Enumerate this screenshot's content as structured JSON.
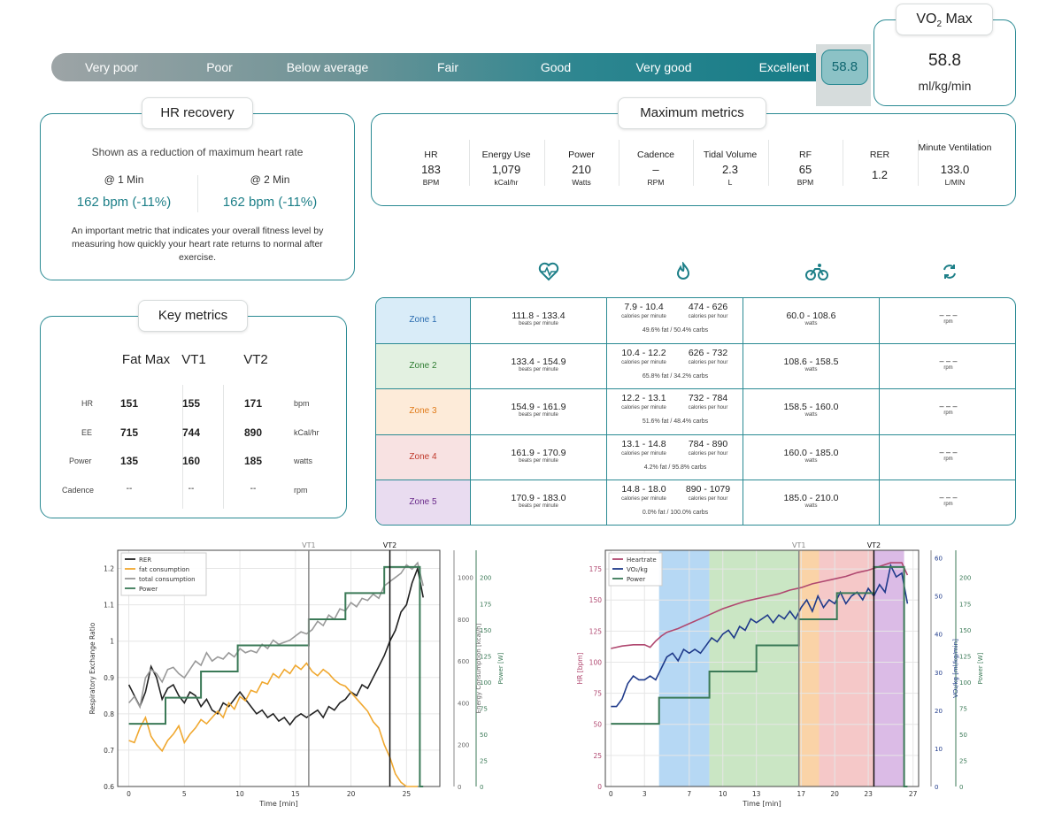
{
  "scale": {
    "labels": [
      "Very poor",
      "Poor",
      "Below average",
      "Fair",
      "Good",
      "Very good",
      "Excellent"
    ],
    "current_value": "58.8",
    "current_fraction": 0.975
  },
  "vo2max": {
    "title_main": "VO",
    "title_sub": "2",
    "title_rest": " Max",
    "value": "58.8",
    "unit": "ml/kg/min"
  },
  "hr_recovery": {
    "title": "HR recovery",
    "description": "Shown as a reduction of maximum heart rate",
    "at1_label": "@ 1 Min",
    "at1_value": "162 bpm (-11%)",
    "at2_label": "@ 2 Min",
    "at2_value": "162 bpm (-11%)",
    "footnote": "An important metric that indicates your overall fitness level by measuring how quickly your heart rate returns to normal after exercise."
  },
  "max_metrics": {
    "title": "Maximum metrics",
    "items": [
      {
        "label": "HR",
        "value": "183",
        "unit": "BPM"
      },
      {
        "label": "Energy Use",
        "value": "1,079",
        "unit": "kCal/hr"
      },
      {
        "label": "Power",
        "value": "210",
        "unit": "Watts"
      },
      {
        "label": "Cadence",
        "value": "–",
        "unit": "RPM"
      },
      {
        "label": "Tidal Volume",
        "value": "2.3",
        "unit": "L"
      },
      {
        "label": "RF",
        "value": "65",
        "unit": "BPM"
      },
      {
        "label": "RER",
        "value": "1.2",
        "unit": ""
      },
      {
        "label": "Minute Ventilation",
        "value": "133.0",
        "unit": "L/MIN"
      }
    ]
  },
  "key_metrics": {
    "title": "Key metrics",
    "columns": [
      "Fat Max",
      "VT1",
      "VT2"
    ],
    "rows": [
      {
        "label": "HR",
        "values": [
          "151",
          "155",
          "171"
        ],
        "unit": "bpm"
      },
      {
        "label": "EE",
        "values": [
          "715",
          "744",
          "890"
        ],
        "unit": "kCal/hr"
      },
      {
        "label": "Power",
        "values": [
          "135",
          "160",
          "185"
        ],
        "unit": "watts"
      },
      {
        "label": "Cadence",
        "values": [
          "--",
          "--",
          "--"
        ],
        "unit": "rpm"
      }
    ]
  },
  "zones": {
    "header_icons": [
      "heart-rate-icon",
      "flame-icon",
      "cycling-icon",
      "cadence-icon"
    ],
    "rows": [
      {
        "name": "Zone 1",
        "color": "#d9ecf8",
        "text_color": "#2b6cb0",
        "hr": "111.8 - 133.4",
        "hr_unit": "beats per minute",
        "cal_min": "7.9 - 10.4",
        "cal_hr": "474 - 626",
        "cal_min_unit": "calories per minute",
        "cal_hr_unit": "calories per hour",
        "ratio": "49.6% fat / 50.4% carbs",
        "power": "60.0 - 108.6",
        "power_unit": "watts",
        "cad": "– – –",
        "cad_unit": "rpm"
      },
      {
        "name": "Zone 2",
        "color": "#e3f1e1",
        "text_color": "#2f7d32",
        "hr": "133.4 - 154.9",
        "hr_unit": "beats per minute",
        "cal_min": "10.4 - 12.2",
        "cal_hr": "626 - 732",
        "cal_min_unit": "calories per minute",
        "cal_hr_unit": "calories per hour",
        "ratio": "65.8% fat / 34.2% carbs",
        "power": "108.6 - 158.5",
        "power_unit": "watts",
        "cad": "– – –",
        "cad_unit": "rpm"
      },
      {
        "name": "Zone 3",
        "color": "#fdebd9",
        "text_color": "#e07b1a",
        "hr": "154.9 - 161.9",
        "hr_unit": "beats per minute",
        "cal_min": "12.2 - 13.1",
        "cal_hr": "732 - 784",
        "cal_min_unit": "calories per minute",
        "cal_hr_unit": "calories per hour",
        "ratio": "51.6% fat / 48.4% carbs",
        "power": "158.5 - 160.0",
        "power_unit": "watts",
        "cad": "– – –",
        "cad_unit": "rpm"
      },
      {
        "name": "Zone 4",
        "color": "#f8e2e2",
        "text_color": "#c0392b",
        "hr": "161.9 - 170.9",
        "hr_unit": "beats per minute",
        "cal_min": "13.1 - 14.8",
        "cal_hr": "784 - 890",
        "cal_min_unit": "calories per minute",
        "cal_hr_unit": "calories per hour",
        "ratio": "4.2% fat / 95.8% carbs",
        "power": "160.0 - 185.0",
        "power_unit": "watts",
        "cad": "– – –",
        "cad_unit": "rpm"
      },
      {
        "name": "Zone 5",
        "color": "#e9dcf0",
        "text_color": "#6a2a8a",
        "hr": "170.9 - 183.0",
        "hr_unit": "beats per minute",
        "cal_min": "14.8 - 18.0",
        "cal_hr": "890 - 1079",
        "cal_min_unit": "calories per minute",
        "cal_hr_unit": "calories per hour",
        "ratio": "0.0% fat / 100.0% carbs",
        "power": "185.0 - 210.0",
        "power_unit": "watts",
        "cad": "– – –",
        "cad_unit": "rpm"
      }
    ]
  },
  "chart_data": [
    {
      "type": "line",
      "xlabel": "Time [min]",
      "ylabel": "Respiratory Exchange Ratio",
      "y2label": "Energy Consumption [kcal/h]",
      "y3label": "Power [W]",
      "xlim": [
        -1,
        28
      ],
      "xticks": [
        0,
        5,
        10,
        15,
        20,
        25
      ],
      "ylim": [
        0.6,
        1.25
      ],
      "yticks": [
        0.6,
        0.7,
        0.8,
        0.9,
        1.0,
        1.1,
        1.2
      ],
      "y2lim": [
        0,
        1130
      ],
      "y2ticks": [
        0,
        200,
        400,
        600,
        800,
        1000
      ],
      "y3lim": [
        0,
        226
      ],
      "y3ticks": [
        0,
        25,
        50,
        75,
        100,
        125,
        150,
        175,
        200
      ],
      "vlines": [
        {
          "label": "VT1",
          "x": 16.2,
          "color": "#888888"
        },
        {
          "label": "VT2",
          "x": 23.5,
          "color": "#111111"
        }
      ],
      "legend": "top-left",
      "series": [
        {
          "name": "RER",
          "color": "#222222",
          "axis": "y",
          "x": [
            0,
            0.5,
            1,
            1.5,
            2,
            2.5,
            3,
            3.5,
            4,
            4.5,
            5,
            5.5,
            6,
            6.5,
            7,
            7.5,
            8,
            8.5,
            9,
            9.5,
            10,
            10.5,
            11,
            11.5,
            12,
            12.5,
            13,
            13.5,
            14,
            14.5,
            15,
            15.5,
            16,
            16.5,
            17,
            17.5,
            18,
            18.5,
            19,
            19.5,
            20,
            20.5,
            21,
            21.5,
            22,
            22.5,
            23,
            23.5,
            24,
            24.5,
            25,
            25.5,
            26,
            26.5
          ],
          "values": [
            0.88,
            0.85,
            0.82,
            0.86,
            0.93,
            0.9,
            0.84,
            0.87,
            0.88,
            0.85,
            0.83,
            0.86,
            0.85,
            0.82,
            0.84,
            0.81,
            0.8,
            0.83,
            0.82,
            0.84,
            0.86,
            0.84,
            0.82,
            0.8,
            0.81,
            0.79,
            0.8,
            0.78,
            0.79,
            0.77,
            0.79,
            0.8,
            0.79,
            0.8,
            0.81,
            0.79,
            0.82,
            0.81,
            0.83,
            0.84,
            0.86,
            0.85,
            0.88,
            0.87,
            0.9,
            0.93,
            0.96,
            1.0,
            1.03,
            1.08,
            1.1,
            1.16,
            1.2,
            1.12
          ]
        },
        {
          "name": "fat consumption",
          "color": "#f0a830",
          "axis": "y2",
          "x": [
            0,
            0.5,
            1,
            1.5,
            2,
            2.5,
            3,
            3.5,
            4,
            4.5,
            5,
            5.5,
            6,
            6.5,
            7,
            7.5,
            8,
            8.5,
            9,
            9.5,
            10,
            10.5,
            11,
            11.5,
            12,
            12.5,
            13,
            13.5,
            14,
            14.5,
            15,
            15.5,
            16,
            16.5,
            17,
            17.5,
            18,
            18.5,
            19,
            19.5,
            20,
            20.5,
            21,
            21.5,
            22,
            22.5,
            23,
            23.5,
            24,
            24.5,
            25,
            25.5,
            26
          ],
          "values": [
            220,
            210,
            280,
            330,
            240,
            200,
            170,
            220,
            250,
            290,
            210,
            250,
            280,
            320,
            300,
            330,
            360,
            330,
            400,
            370,
            430,
            410,
            460,
            450,
            500,
            490,
            540,
            520,
            560,
            540,
            580,
            560,
            590,
            550,
            530,
            560,
            540,
            510,
            490,
            480,
            450,
            420,
            390,
            360,
            310,
            280,
            200,
            140,
            60,
            20,
            0,
            0,
            0
          ]
        },
        {
          "name": "total consumption",
          "color": "#999999",
          "axis": "y2",
          "x": [
            0,
            0.5,
            1,
            1.5,
            2,
            2.5,
            3,
            3.5,
            4,
            4.5,
            5,
            5.5,
            6,
            6.5,
            7,
            7.5,
            8,
            8.5,
            9,
            9.5,
            10,
            10.5,
            11,
            11.5,
            12,
            12.5,
            13,
            13.5,
            14,
            14.5,
            15,
            15.5,
            16,
            16.5,
            17,
            17.5,
            18,
            18.5,
            19,
            19.5,
            20,
            20.5,
            21,
            21.5,
            22,
            22.5,
            23,
            23.5,
            24,
            24.5,
            25,
            25.5,
            26,
            26.5
          ],
          "values": [
            400,
            430,
            380,
            520,
            560,
            540,
            500,
            560,
            570,
            540,
            520,
            560,
            600,
            580,
            640,
            600,
            620,
            610,
            640,
            620,
            660,
            640,
            650,
            640,
            680,
            660,
            700,
            680,
            690,
            700,
            720,
            740,
            730,
            750,
            790,
            770,
            820,
            800,
            850,
            840,
            880,
            860,
            900,
            890,
            920,
            900,
            960,
            980,
            1000,
            1020,
            1060,
            1040,
            1070,
            960
          ]
        },
        {
          "name": "Power",
          "color": "#3b7a57",
          "axis": "y3",
          "x": [
            0,
            3.3,
            3.3,
            6.5,
            6.5,
            9.8,
            9.8,
            13,
            13,
            16.2,
            16.2,
            19.5,
            19.5,
            23,
            23,
            24.2,
            24.2,
            26.2,
            26.2,
            26.5
          ],
          "values": [
            60,
            60,
            85,
            85,
            110,
            110,
            135,
            135,
            135,
            135,
            160,
            160,
            185,
            185,
            210,
            210,
            210,
            210,
            0,
            0
          ]
        }
      ]
    },
    {
      "type": "line",
      "xlabel": "Time [min]",
      "ylabel": "HR [bpm]",
      "y2label": "VO₂/kg [ml/kg/min]",
      "y3label": "Power [W]",
      "xlim": [
        -0.5,
        27.5
      ],
      "xticks": [
        0,
        3,
        7,
        10,
        13,
        17,
        20,
        23,
        27
      ],
      "ylim": [
        0,
        190
      ],
      "yticks": [
        0,
        25,
        50,
        75,
        100,
        125,
        150,
        175
      ],
      "y2lim": [
        0,
        62
      ],
      "y2ticks": [
        0,
        10,
        20,
        30,
        40,
        50,
        60
      ],
      "y3lim": [
        0,
        226
      ],
      "y3ticks": [
        0,
        25,
        50,
        75,
        100,
        125,
        150,
        175,
        200
      ],
      "vlines": [
        {
          "label": "VT1",
          "x": 16.8,
          "color": "#888888"
        },
        {
          "label": "VT2",
          "x": 23.5,
          "color": "#111111"
        }
      ],
      "zone_bands": [
        {
          "from": 4.3,
          "to": 8.8,
          "color": "#9ecbf0"
        },
        {
          "from": 8.8,
          "to": 16.8,
          "color": "#b8ddb0"
        },
        {
          "from": 16.8,
          "to": 18.6,
          "color": "#f8c48a"
        },
        {
          "from": 18.6,
          "to": 23.5,
          "color": "#f2b5b5"
        },
        {
          "from": 23.5,
          "to": 26.2,
          "color": "#cfa4dd"
        }
      ],
      "legend": "top-left",
      "series": [
        {
          "name": "Heartrate",
          "color": "#b04870",
          "axis": "y",
          "x": [
            0,
            1,
            2,
            3,
            3.5,
            4,
            4.5,
            5,
            6,
            7,
            8,
            9,
            10,
            11,
            12,
            13,
            14,
            15,
            16,
            17,
            18,
            19,
            20,
            21,
            22,
            23,
            24,
            25,
            26,
            26.5
          ],
          "values": [
            111,
            113,
            114,
            114,
            112,
            117,
            121,
            124,
            127,
            131,
            135,
            139,
            143,
            146,
            149,
            151,
            153,
            155,
            158,
            160,
            163,
            165,
            167,
            169,
            172,
            174,
            177,
            180,
            180,
            170
          ]
        },
        {
          "name": "VO₂/kg",
          "color": "#1f3a8a",
          "axis": "y2",
          "x": [
            0,
            0.5,
            1,
            1.5,
            2,
            2.5,
            3,
            3.5,
            4,
            4.5,
            5,
            5.5,
            6,
            6.5,
            7,
            7.5,
            8,
            8.5,
            9,
            9.5,
            10,
            10.5,
            11,
            11.5,
            12,
            12.5,
            13,
            13.5,
            14,
            14.5,
            15,
            15.5,
            16,
            16.5,
            17,
            17.5,
            18,
            18.5,
            19,
            19.5,
            20,
            20.5,
            21,
            21.5,
            22,
            22.5,
            23,
            23.5,
            24,
            24.5,
            25,
            25.5,
            26,
            26.5
          ],
          "values": [
            21,
            21,
            23,
            27,
            29,
            28,
            28,
            29,
            28,
            31,
            34,
            35,
            33,
            36,
            35,
            36,
            35,
            37,
            39,
            38,
            40,
            41,
            39,
            42,
            41,
            44,
            43,
            44,
            45,
            43,
            45,
            44,
            46,
            44,
            47,
            49,
            46,
            50,
            47,
            49,
            48,
            51,
            48,
            50,
            51,
            49,
            52,
            50,
            53,
            51,
            58,
            55,
            56,
            48
          ]
        },
        {
          "name": "Power",
          "color": "#3b7a57",
          "axis": "y3",
          "x": [
            0,
            4.3,
            4.3,
            8.8,
            8.8,
            13,
            13,
            16.8,
            16.8,
            20.2,
            20.2,
            23.5,
            23.5,
            26.2,
            26.2,
            26.5
          ],
          "values": [
            60,
            60,
            85,
            85,
            110,
            110,
            135,
            135,
            160,
            160,
            185,
            185,
            210,
            210,
            0,
            0
          ]
        }
      ]
    }
  ]
}
